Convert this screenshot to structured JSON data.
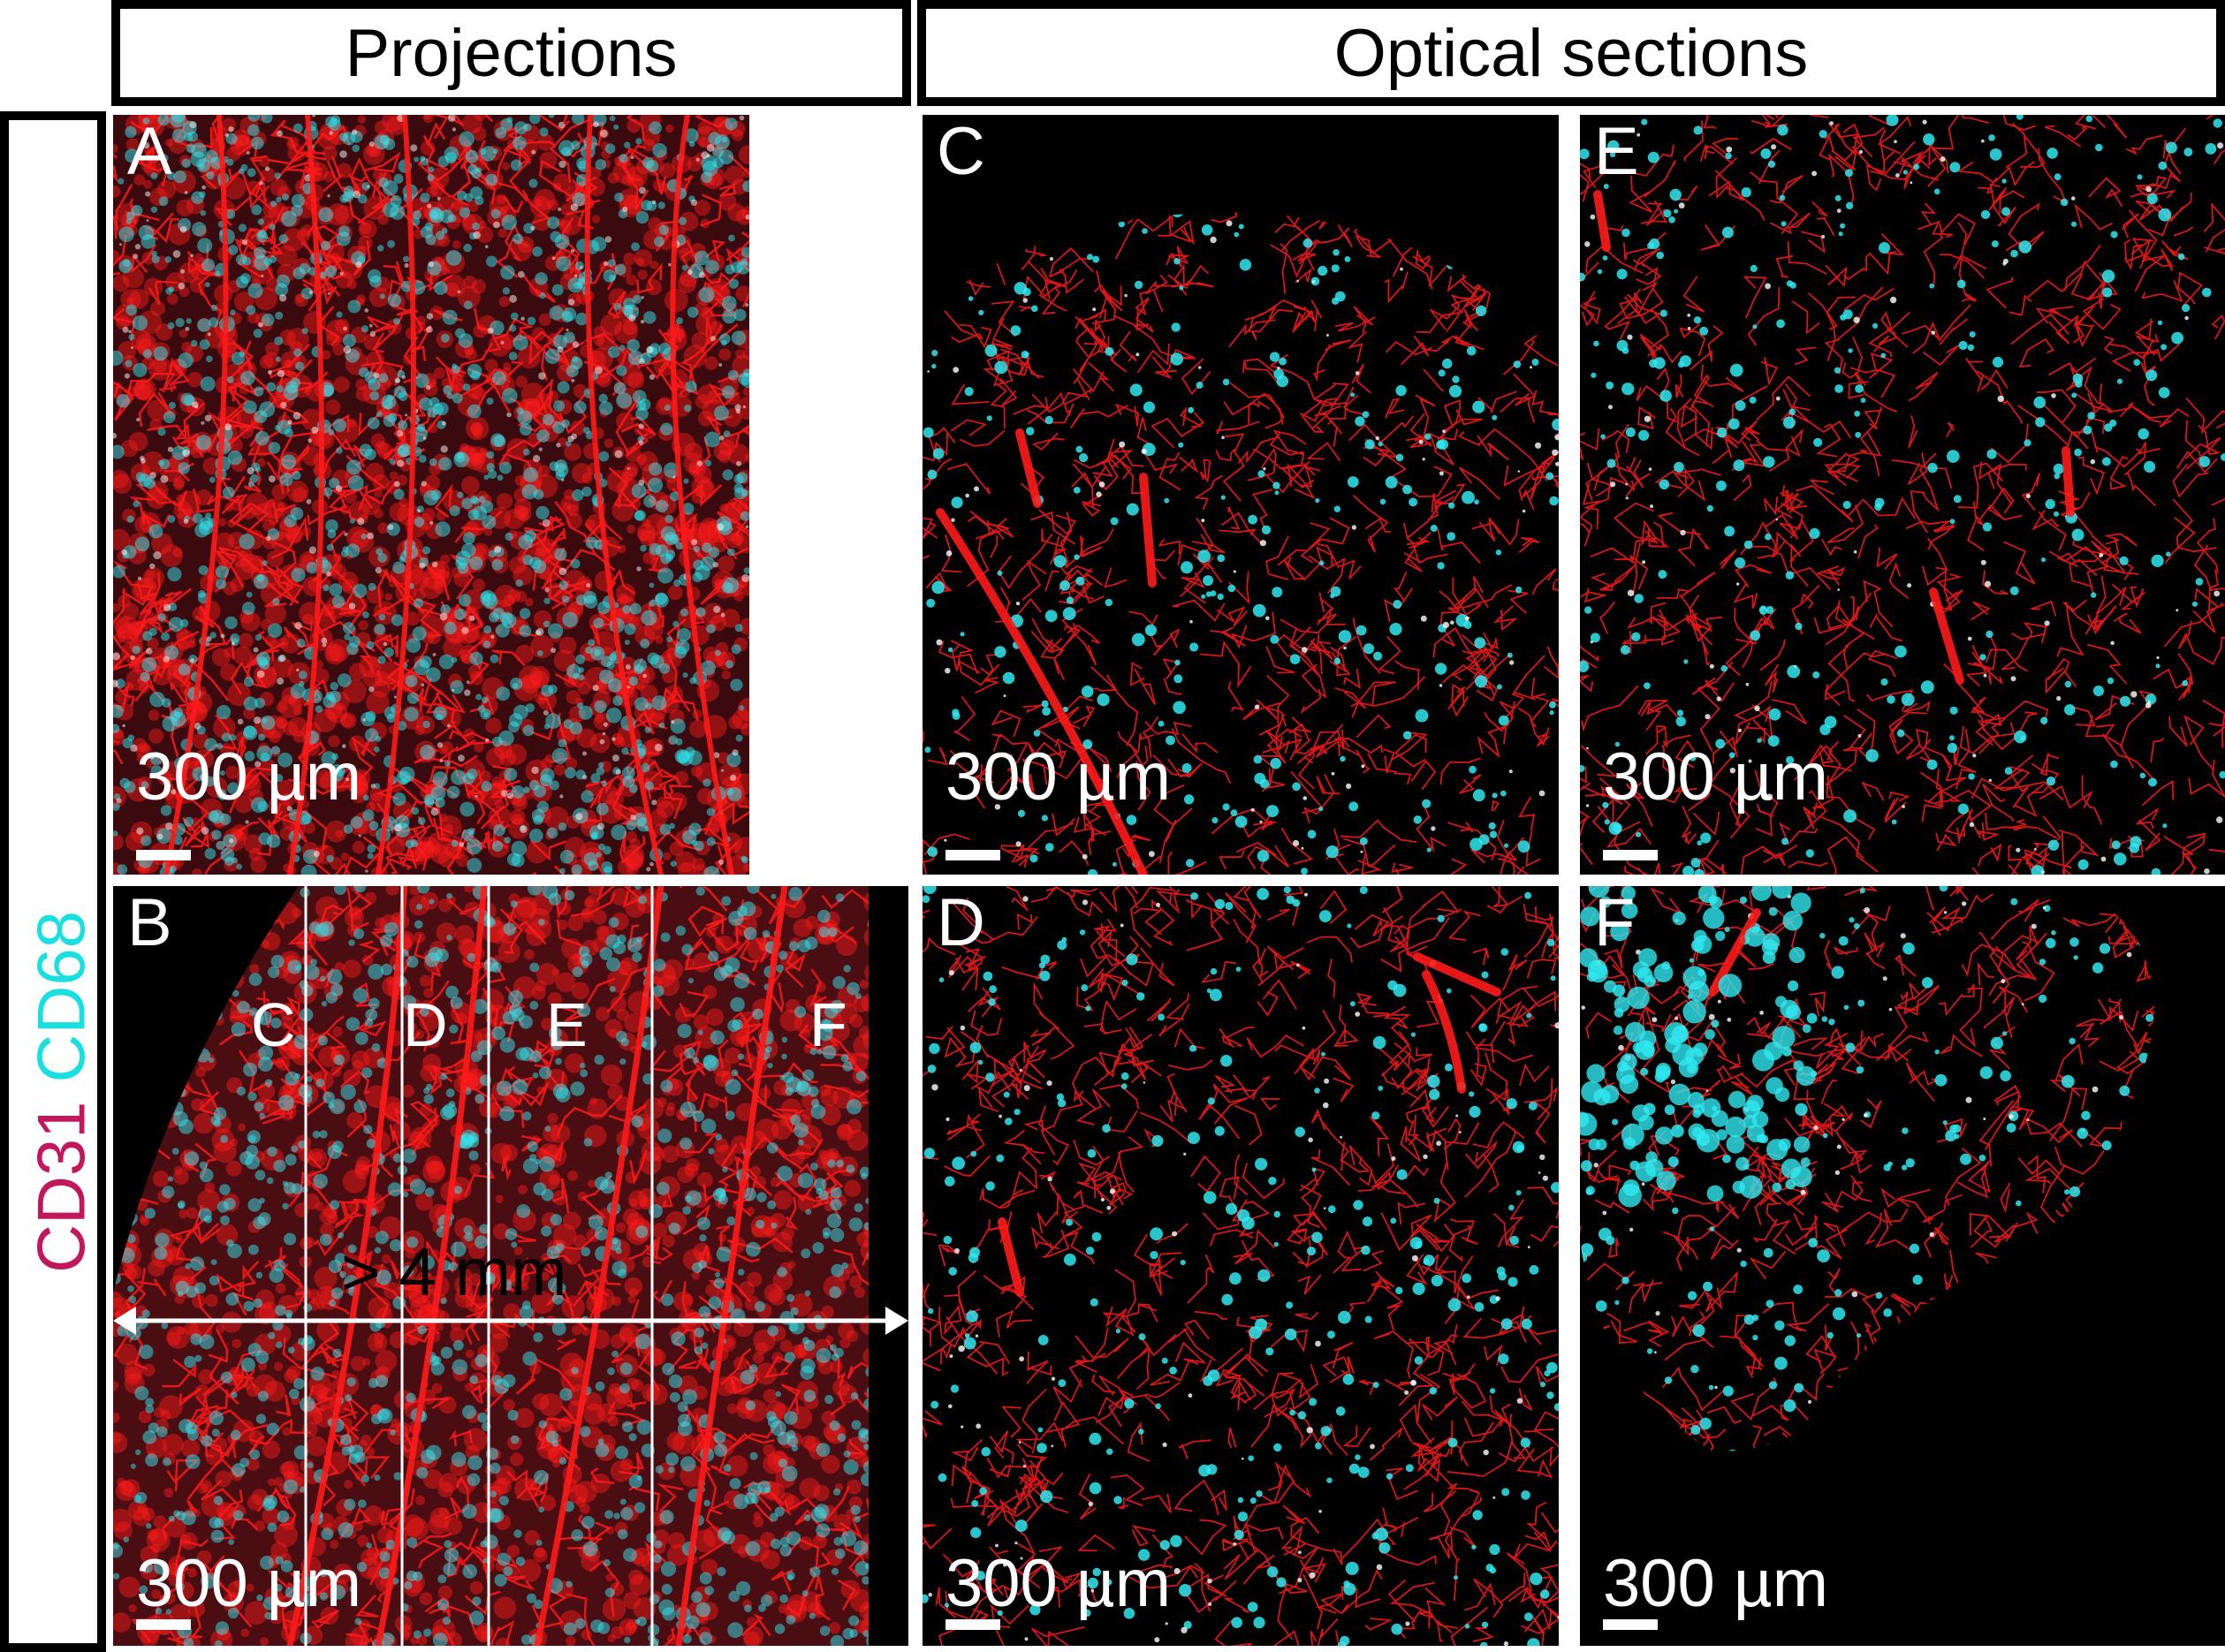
{
  "headers": {
    "projections": "Projections",
    "optical_sections": "Optical sections"
  },
  "side_label": {
    "marker_red": "CD31",
    "marker_cyan": "CD68"
  },
  "colors": {
    "vessel_red": "#ff1a1a",
    "macrophage_cyan": "#30e8f0",
    "cd31_text": "#c2185b",
    "cd68_text": "#18e0e0",
    "background": "#000000"
  },
  "panels": [
    {
      "letter": "A",
      "scale_bar": "300 µm"
    },
    {
      "letter": "B",
      "scale_bar": "300 µm"
    },
    {
      "letter": "C",
      "scale_bar": "300 µm"
    },
    {
      "letter": "D",
      "scale_bar": "300 µm"
    },
    {
      "letter": "E",
      "scale_bar": "300 µm"
    },
    {
      "letter": "F",
      "scale_bar": "300 µm"
    }
  ],
  "panel_b": {
    "section_markers": [
      "C",
      "D",
      "E",
      "F"
    ],
    "measurement": "> 4 mm"
  }
}
